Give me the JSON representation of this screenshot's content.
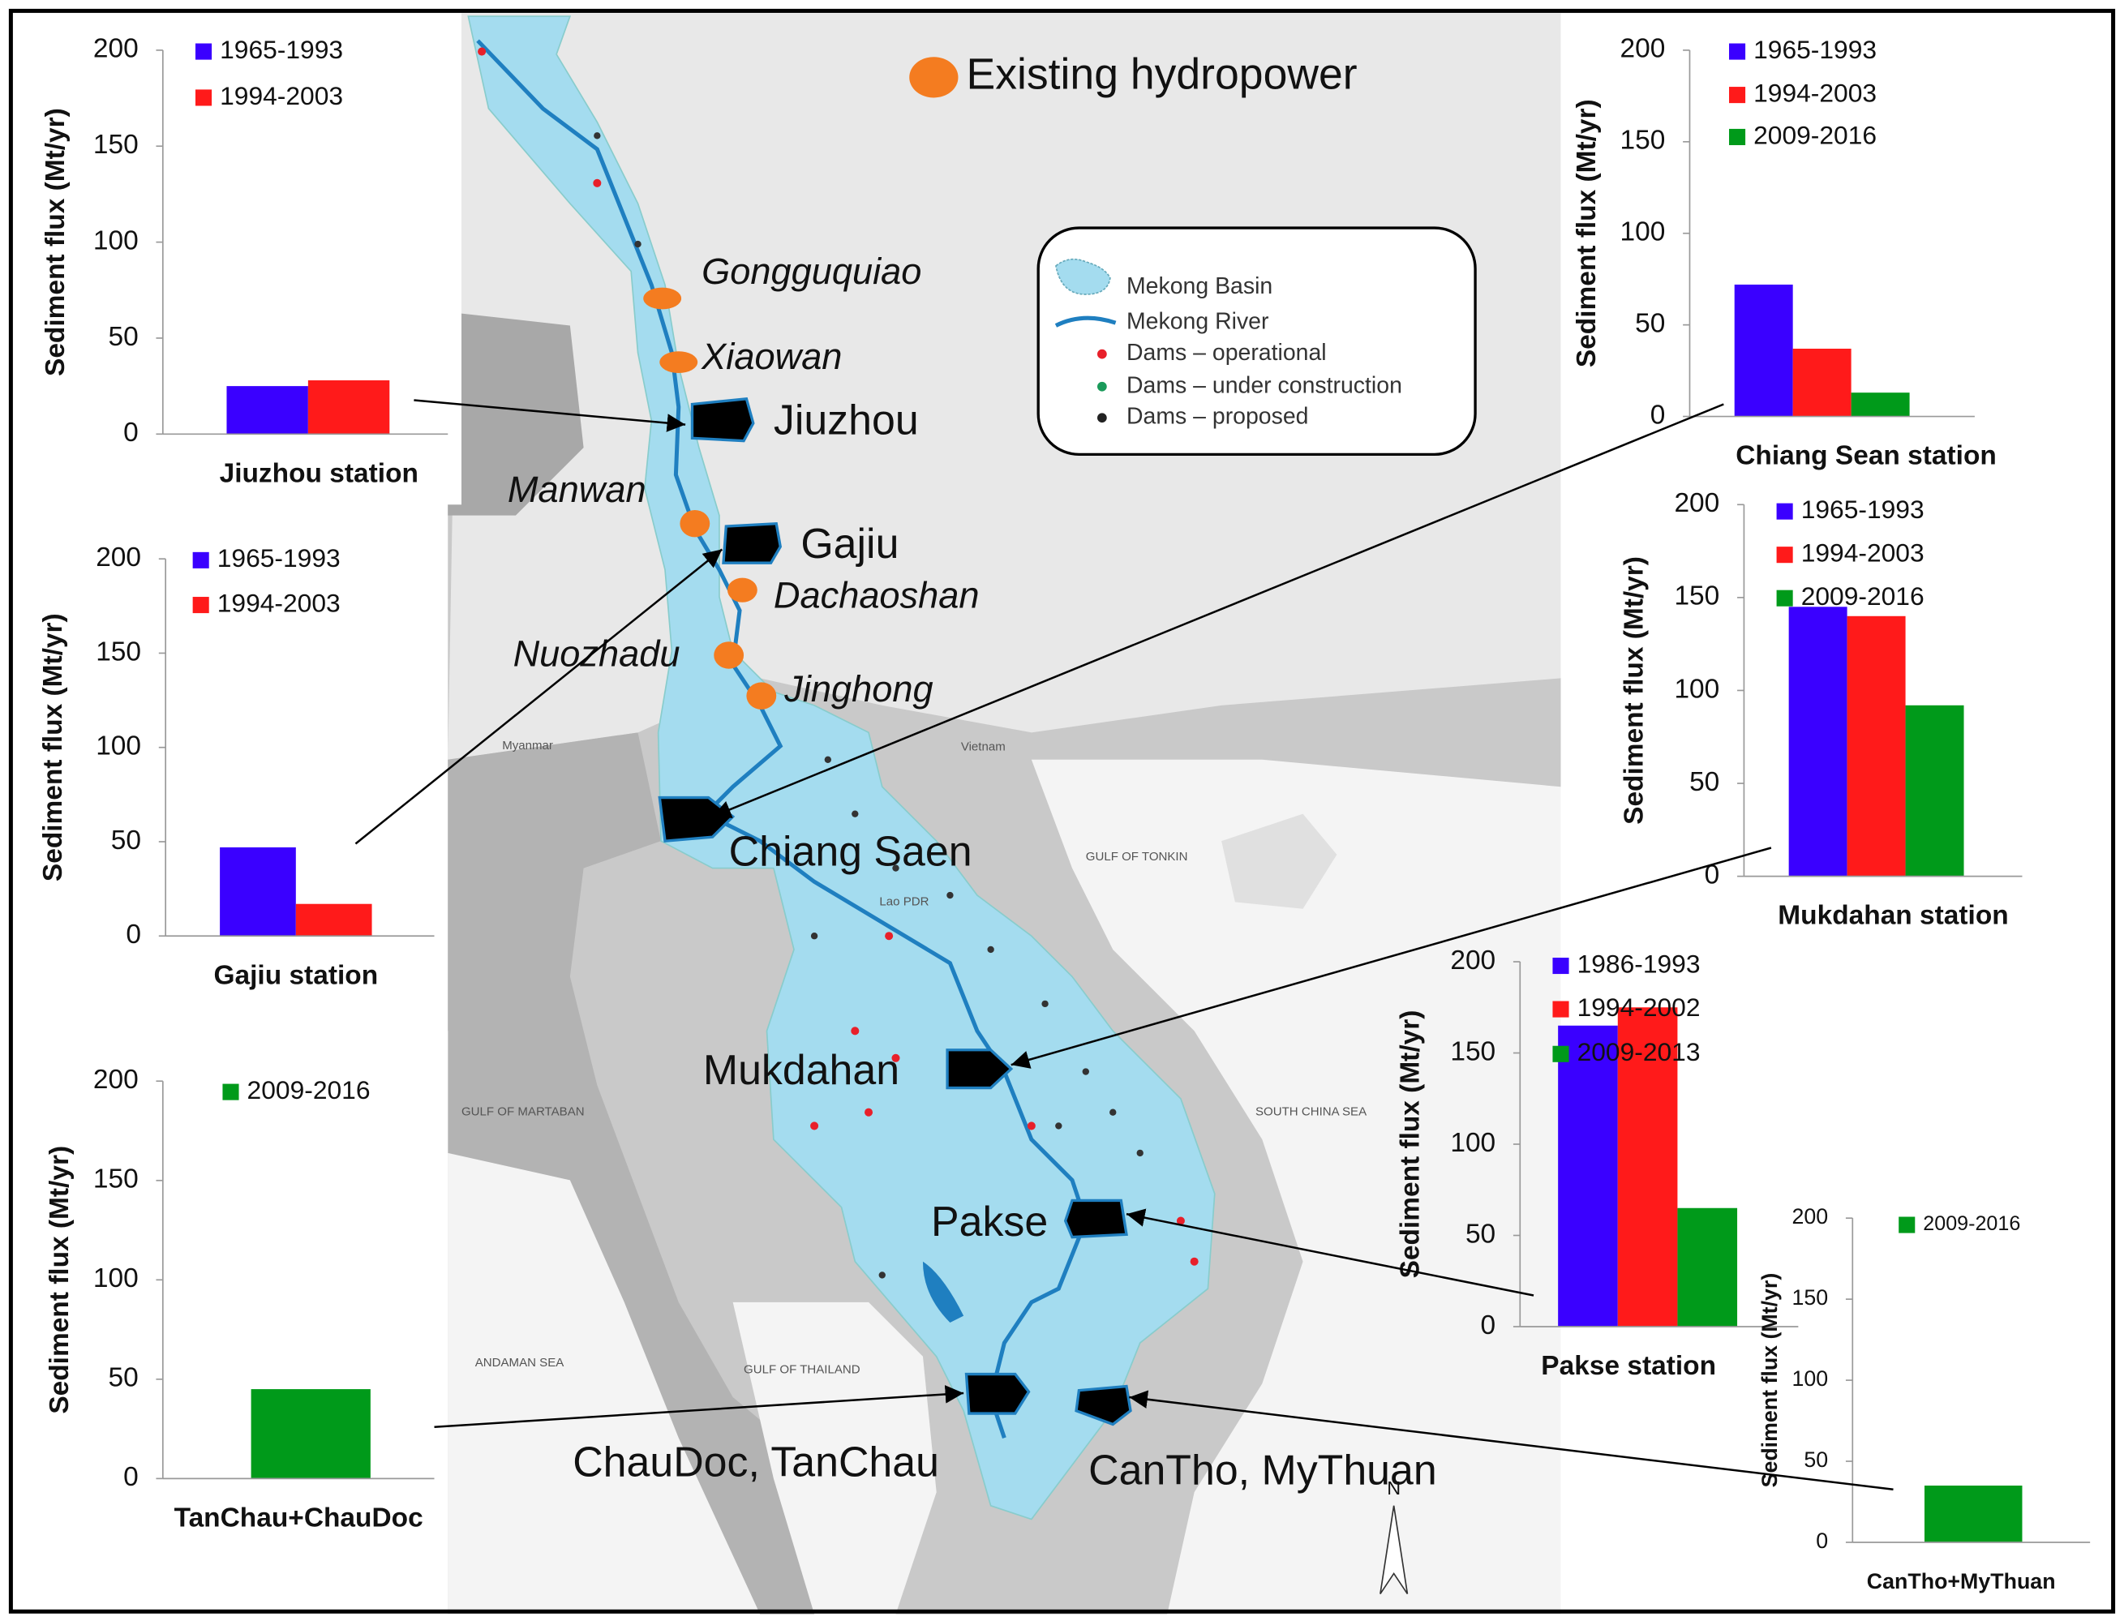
{
  "chart_data": [
    {
      "type": "bar",
      "xlabel": "Jiuzhou station",
      "ylabel": "Sediment flux (Mt/yr)",
      "ylim": [
        0,
        200
      ],
      "yticks": [
        0,
        50,
        100,
        150,
        200
      ],
      "series": [
        {
          "name": "1965-1993",
          "color": "#3a00ff",
          "values": [
            25
          ]
        },
        {
          "name": "1994-2003",
          "color": "#ff1a1a",
          "values": [
            28
          ]
        }
      ]
    },
    {
      "type": "bar",
      "xlabel": "Chiang Sean station",
      "ylabel": "Sediment flux (Mt/yr)",
      "ylim": [
        0,
        200
      ],
      "yticks": [
        0,
        50,
        100,
        150,
        200
      ],
      "series": [
        {
          "name": "1965-1993",
          "color": "#3a00ff",
          "values": [
            72
          ]
        },
        {
          "name": "1994-2003",
          "color": "#ff1a1a",
          "values": [
            37
          ]
        },
        {
          "name": "2009-2016",
          "color": "#009a1a",
          "values": [
            13
          ]
        }
      ]
    },
    {
      "type": "bar",
      "xlabel": "Gajiu station",
      "ylabel": "Sediment flux (Mt/yr)",
      "ylim": [
        0,
        200
      ],
      "yticks": [
        0,
        50,
        100,
        150,
        200
      ],
      "series": [
        {
          "name": "1965-1993",
          "color": "#3a00ff",
          "values": [
            47
          ]
        },
        {
          "name": "1994-2003",
          "color": "#ff1a1a",
          "values": [
            17
          ]
        }
      ]
    },
    {
      "type": "bar",
      "xlabel": "Mukdahan station",
      "ylabel": "Sediment flux (Mt/yr)",
      "ylim": [
        0,
        200
      ],
      "yticks": [
        0,
        50,
        100,
        150,
        200
      ],
      "series": [
        {
          "name": "1965-1993",
          "color": "#3a00ff",
          "values": [
            145
          ]
        },
        {
          "name": "1994-2003",
          "color": "#ff1a1a",
          "values": [
            140
          ]
        },
        {
          "name": "2009-2016",
          "color": "#009a1a",
          "values": [
            92
          ]
        }
      ]
    },
    {
      "type": "bar",
      "xlabel": "Pakse station",
      "ylabel": "Sediment flux (Mt/yr)",
      "ylim": [
        0,
        200
      ],
      "yticks": [
        0,
        50,
        100,
        150,
        200
      ],
      "series": [
        {
          "name": "1986-1993",
          "color": "#3a00ff",
          "values": [
            165
          ]
        },
        {
          "name": "1994-2002",
          "color": "#ff1a1a",
          "values": [
            175
          ]
        },
        {
          "name": "2009-2013",
          "color": "#009a1a",
          "values": [
            65
          ]
        }
      ]
    },
    {
      "type": "bar",
      "xlabel": "TanChau+ChauDoc",
      "ylabel": "Sediment flux (Mt/yr)",
      "ylim": [
        0,
        200
      ],
      "yticks": [
        0,
        50,
        100,
        150,
        200
      ],
      "series": [
        {
          "name": "2009-2016",
          "color": "#009a1a",
          "values": [
            45
          ]
        }
      ]
    },
    {
      "type": "bar",
      "xlabel": "CanTho+MyThuan",
      "ylabel": "Sediment flux (Mt/yr)",
      "ylim": [
        0,
        200
      ],
      "yticks": [
        0,
        50,
        100,
        150,
        200
      ],
      "series": [
        {
          "name": "2009-2016",
          "color": "#009a1a",
          "values": [
            35
          ]
        }
      ]
    }
  ],
  "map": {
    "hydropower_label": "Existing hydropower",
    "dams": [
      "Gongguquiao",
      "Xiaowan",
      "Manwan",
      "Dachaoshan",
      "Nuozhadu",
      "Jinghong"
    ],
    "stations": [
      "Jiuzhou",
      "Gajiu",
      "Chiang Saen",
      "Mukdahan",
      "Pakse",
      "ChauDoc, TanChau",
      "CanTho, MyThuan"
    ],
    "legend": [
      "Mekong Basin",
      "Mekong River",
      "Dams – operational",
      "Dams – under construction",
      "Dams – proposed"
    ],
    "places": [
      "Myanmar",
      "Vietnam",
      "Lao PDR",
      "GULF OF TONKIN",
      "GULF OF MARTABAN",
      "SOUTH CHINA SEA",
      "ANDAMAN SEA",
      "GULF OF THAILAND",
      "N"
    ]
  }
}
